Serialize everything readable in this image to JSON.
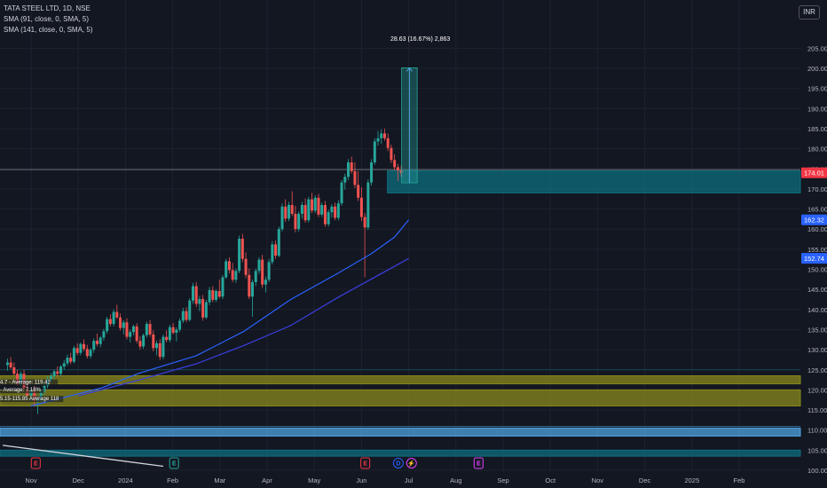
{
  "legend": {
    "symbol": "TATA STEEL LTD, 1D, NSE",
    "sma1": "SMA (91, close, 0, SMA, 5)",
    "sma2": "SMA (141, close, 0, SMA, 5)"
  },
  "currency": "INR",
  "measure_label": "28.63 (16.67%) 2,863",
  "zone_labels": [
    "4.7 - Average: 119.42",
    "- Average: 7.18%",
    "5.15-115.85 Average 118"
  ],
  "colors": {
    "background": "#131722",
    "up": "#26a69a",
    "down": "#ef5350",
    "sma1": "#2962ff",
    "sma2": "#3a3fe0",
    "zone_teal": "#0e6e7e",
    "zone_olive": "#8a8a1c",
    "zone_blue": "#4fa3e0"
  },
  "chart_data": {
    "type": "candlestick",
    "y_ticks": [
      100,
      105,
      110,
      115,
      120,
      125,
      130,
      135,
      140,
      145,
      150,
      155,
      160,
      165,
      170,
      175,
      180,
      185,
      190,
      195,
      200,
      205
    ],
    "ylim": [
      100,
      208
    ],
    "x_ticks": [
      "Nov",
      "Dec",
      "2024",
      "Feb",
      "Mar",
      "Apr",
      "May",
      "Jun",
      "Jul",
      "Aug",
      "Sep",
      "Oct",
      "Nov",
      "Dec",
      "2025",
      "Feb"
    ],
    "price_badges": [
      {
        "value": 174.01,
        "label": "174.01",
        "color": "#f23645"
      },
      {
        "value": 162.32,
        "label": "162.32",
        "color": "#2962ff"
      },
      {
        "value": 152.74,
        "label": "152.74",
        "color": "#2962ff"
      }
    ],
    "series": [
      {
        "name": "SMA (91, close, 0, SMA, 5)",
        "points": [
          [
            0,
            116
          ],
          [
            1.5,
            120.5
          ],
          [
            2.3,
            124.2
          ],
          [
            3.5,
            128.5
          ],
          [
            4.5,
            134.5
          ],
          [
            5.5,
            142.5
          ],
          [
            6.5,
            149
          ],
          [
            7.2,
            153.8
          ],
          [
            7.7,
            158
          ],
          [
            8.0,
            162.3
          ]
        ]
      },
      {
        "name": "SMA (141, close, 0, SMA, 5)",
        "points": [
          [
            1.0,
            118.5
          ],
          [
            2.3,
            122.5
          ],
          [
            3.5,
            126.5
          ],
          [
            4.5,
            131
          ],
          [
            5.5,
            136
          ],
          [
            6.5,
            143
          ],
          [
            7.2,
            147.5
          ],
          [
            8.0,
            152.7
          ]
        ]
      }
    ],
    "zones": [
      {
        "from": 169,
        "to": 174.5,
        "color": "#0e6e7e",
        "x_start": 7.55
      },
      {
        "from": 121.5,
        "to": 123.5,
        "color": "#8a8a1c"
      },
      {
        "from": 116,
        "to": 120,
        "color": "#8a8a1c"
      },
      {
        "from": 108.5,
        "to": 110.5,
        "color": "#4fa3e0"
      },
      {
        "from": 103.5,
        "to": 105,
        "color": "#0e6e7e"
      }
    ],
    "measure": {
      "x_start": 7.85,
      "x_end": 8.18,
      "from": 171.5,
      "to": 200.13,
      "change": 28.63,
      "percent": 16.67,
      "ticks": 2863
    },
    "events": [
      {
        "x": 0.1,
        "label": "E",
        "color": "#f23645"
      },
      {
        "x": 3.03,
        "label": "E",
        "color": "#26a69a"
      },
      {
        "x": 7.08,
        "label": "E",
        "color": "#f23645"
      },
      {
        "x": 7.78,
        "label": "D",
        "color": "#2962ff"
      },
      {
        "x": 8.06,
        "label": "⚡",
        "color": "#e040fb"
      },
      {
        "x": 9.48,
        "label": "E",
        "color": "#e040fb"
      }
    ],
    "trendline": {
      "from": [
        -0.6,
        106.2
      ],
      "to": [
        2.8,
        101
      ]
    },
    "candles": [
      [
        -0.5,
        126.2,
        127.8,
        124.8,
        126.8
      ],
      [
        -0.43,
        126.8,
        128.2,
        125.2,
        125.6
      ],
      [
        -0.36,
        125.6,
        126.8,
        123.6,
        124.0
      ],
      [
        -0.29,
        124.0,
        125.0,
        121.0,
        121.6
      ],
      [
        -0.22,
        121.6,
        124.6,
        121.0,
        124.0
      ],
      [
        -0.15,
        124.0,
        125.0,
        119.8,
        120.2
      ],
      [
        -0.08,
        120.2,
        122.0,
        117.8,
        118.6
      ],
      [
        0.0,
        118.6,
        120.4,
        117.2,
        119.8
      ],
      [
        0.07,
        119.8,
        121.0,
        116.0,
        117.2
      ],
      [
        0.14,
        117.2,
        118.4,
        114.0,
        117.8
      ],
      [
        0.21,
        117.8,
        120.2,
        117.0,
        119.6
      ],
      [
        0.28,
        119.6,
        121.6,
        118.8,
        121.0
      ],
      [
        0.35,
        121.0,
        123.4,
        120.4,
        122.6
      ],
      [
        0.42,
        122.6,
        124.2,
        121.8,
        123.4
      ],
      [
        0.49,
        123.4,
        125.0,
        122.6,
        124.6
      ],
      [
        0.56,
        124.6,
        125.8,
        123.2,
        124.0
      ],
      [
        0.63,
        124.0,
        126.2,
        123.4,
        125.8
      ],
      [
        0.7,
        125.8,
        127.4,
        125.0,
        126.6
      ],
      [
        0.77,
        126.6,
        128.8,
        126.0,
        128.0
      ],
      [
        0.84,
        128.0,
        129.2,
        126.4,
        127.0
      ],
      [
        0.91,
        127.0,
        131.0,
        126.6,
        130.4
      ],
      [
        0.98,
        130.4,
        131.6,
        128.6,
        129.2
      ],
      [
        1.05,
        129.2,
        131.8,
        128.6,
        131.4
      ],
      [
        1.12,
        131.4,
        132.6,
        129.6,
        130.2
      ],
      [
        1.19,
        130.2,
        131.2,
        127.8,
        128.4
      ],
      [
        1.26,
        128.4,
        130.4,
        127.8,
        130.0
      ],
      [
        1.33,
        130.0,
        132.8,
        129.2,
        132.2
      ],
      [
        1.4,
        132.2,
        134.0,
        130.8,
        131.4
      ],
      [
        1.47,
        131.4,
        133.4,
        130.6,
        133.0
      ],
      [
        1.54,
        133.0,
        135.2,
        132.2,
        134.6
      ],
      [
        1.61,
        134.6,
        138.2,
        134.0,
        137.6
      ],
      [
        1.68,
        137.6,
        138.8,
        135.8,
        136.4
      ],
      [
        1.75,
        136.4,
        140.0,
        135.8,
        139.4
      ],
      [
        1.82,
        139.4,
        141.2,
        137.6,
        138.0
      ],
      [
        1.89,
        138.0,
        139.0,
        134.8,
        135.4
      ],
      [
        1.96,
        135.4,
        137.4,
        133.8,
        136.8
      ],
      [
        2.03,
        136.8,
        137.8,
        132.6,
        133.2
      ],
      [
        2.1,
        133.2,
        135.0,
        131.8,
        134.4
      ],
      [
        2.17,
        134.4,
        136.2,
        133.6,
        135.8
      ],
      [
        2.24,
        135.8,
        136.6,
        131.6,
        132.2
      ],
      [
        2.31,
        132.2,
        133.4,
        130.0,
        130.8
      ],
      [
        2.38,
        130.8,
        134.0,
        130.2,
        133.6
      ],
      [
        2.45,
        133.6,
        137.0,
        133.0,
        136.4
      ],
      [
        2.52,
        136.4,
        137.4,
        133.2,
        133.8
      ],
      [
        2.59,
        133.8,
        134.8,
        129.6,
        130.4
      ],
      [
        2.66,
        130.4,
        132.2,
        128.6,
        131.6
      ],
      [
        2.73,
        131.6,
        132.6,
        127.4,
        128.2
      ],
      [
        2.8,
        128.2,
        133.8,
        127.6,
        133.2
      ],
      [
        2.87,
        133.2,
        134.8,
        131.8,
        132.4
      ],
      [
        2.94,
        132.4,
        136.2,
        131.8,
        135.6
      ],
      [
        3.01,
        135.6,
        136.6,
        133.8,
        134.2
      ],
      [
        3.08,
        134.2,
        135.6,
        132.0,
        135.0
      ],
      [
        3.15,
        135.0,
        137.8,
        134.4,
        137.2
      ],
      [
        3.22,
        137.2,
        140.4,
        136.6,
        139.6
      ],
      [
        3.29,
        139.6,
        140.6,
        136.8,
        137.4
      ],
      [
        3.36,
        137.4,
        142.8,
        137.0,
        142.2
      ],
      [
        3.43,
        142.2,
        146.6,
        141.4,
        145.8
      ],
      [
        3.5,
        145.8,
        146.8,
        140.6,
        141.4
      ],
      [
        3.57,
        141.4,
        143.4,
        139.6,
        142.6
      ],
      [
        3.64,
        142.6,
        143.6,
        137.2,
        138.0
      ],
      [
        3.71,
        138.0,
        142.4,
        137.6,
        141.8
      ],
      [
        3.78,
        141.8,
        145.6,
        141.0,
        144.8
      ],
      [
        3.85,
        144.8,
        145.8,
        141.8,
        142.4
      ],
      [
        3.92,
        142.4,
        145.0,
        141.8,
        144.6
      ],
      [
        3.99,
        144.6,
        147.4,
        142.8,
        143.2
      ],
      [
        4.06,
        143.2,
        148.6,
        142.6,
        148.0
      ],
      [
        4.13,
        148.0,
        152.6,
        147.6,
        152.0
      ],
      [
        4.2,
        152.0,
        153.0,
        149.0,
        149.8
      ],
      [
        4.27,
        149.8,
        151.6,
        146.8,
        147.4
      ],
      [
        4.34,
        147.4,
        150.2,
        146.6,
        149.6
      ],
      [
        4.41,
        149.6,
        158.4,
        149.0,
        157.6
      ],
      [
        4.48,
        157.6,
        158.8,
        151.8,
        152.6
      ],
      [
        4.55,
        152.6,
        154.2,
        147.8,
        148.6
      ],
      [
        4.62,
        148.6,
        150.2,
        142.6,
        143.2
      ],
      [
        4.69,
        143.2,
        147.4,
        138.2,
        146.8
      ],
      [
        4.76,
        146.8,
        150.2,
        145.8,
        149.6
      ],
      [
        4.83,
        149.6,
        153.0,
        148.8,
        152.4
      ],
      [
        4.9,
        152.4,
        153.6,
        145.4,
        146.2
      ],
      [
        4.97,
        146.2,
        148.2,
        144.2,
        147.4
      ],
      [
        5.04,
        147.4,
        152.6,
        146.8,
        151.8
      ],
      [
        5.11,
        151.8,
        157.0,
        151.2,
        156.2
      ],
      [
        5.18,
        156.2,
        157.2,
        152.6,
        153.4
      ],
      [
        5.25,
        153.4,
        160.6,
        153.0,
        160.0
      ],
      [
        5.32,
        160.0,
        166.4,
        159.4,
        165.6
      ],
      [
        5.39,
        165.6,
        167.4,
        161.8,
        162.6
      ],
      [
        5.46,
        162.6,
        166.8,
        162.0,
        166.0
      ],
      [
        5.53,
        166.0,
        169.4,
        163.2,
        163.8
      ],
      [
        5.6,
        163.8,
        165.8,
        159.2,
        160.0
      ],
      [
        5.67,
        160.0,
        164.4,
        159.4,
        163.8
      ],
      [
        5.74,
        163.8,
        166.8,
        162.6,
        166.0
      ],
      [
        5.81,
        166.0,
        167.6,
        161.6,
        162.2
      ],
      [
        5.88,
        162.2,
        168.0,
        161.6,
        167.4
      ],
      [
        5.95,
        167.4,
        169.0,
        164.0,
        164.6
      ],
      [
        6.02,
        164.6,
        168.4,
        164.0,
        167.8
      ],
      [
        6.09,
        167.8,
        168.8,
        163.0,
        163.6
      ],
      [
        6.16,
        163.6,
        166.6,
        163.0,
        166.0
      ],
      [
        6.23,
        166.0,
        167.0,
        160.6,
        161.2
      ],
      [
        6.3,
        161.2,
        164.8,
        160.6,
        164.2
      ],
      [
        6.37,
        164.2,
        166.2,
        162.8,
        165.6
      ],
      [
        6.44,
        165.6,
        166.6,
        162.2,
        162.8
      ],
      [
        6.51,
        162.8,
        167.2,
        162.2,
        166.4
      ],
      [
        6.58,
        166.4,
        172.2,
        165.8,
        171.6
      ],
      [
        6.65,
        171.6,
        173.8,
        169.8,
        173.0
      ],
      [
        6.72,
        173.0,
        177.4,
        172.2,
        176.6
      ],
      [
        6.79,
        176.6,
        178.0,
        173.8,
        174.4
      ],
      [
        6.86,
        174.4,
        176.6,
        170.2,
        171.0
      ],
      [
        6.93,
        171.0,
        174.4,
        167.0,
        167.8
      ],
      [
        7.0,
        167.8,
        170.4,
        162.0,
        163.0
      ],
      [
        7.07,
        163.0,
        164.0,
        148.0,
        160.4
      ],
      [
        7.14,
        160.4,
        172.4,
        159.8,
        171.6
      ],
      [
        7.21,
        171.6,
        177.4,
        170.8,
        176.6
      ],
      [
        7.28,
        176.6,
        182.6,
        176.0,
        181.8
      ],
      [
        7.35,
        181.8,
        184.4,
        180.8,
        182.6
      ],
      [
        7.42,
        182.6,
        184.8,
        181.2,
        183.8
      ],
      [
        7.49,
        183.8,
        185.0,
        182.0,
        182.6
      ],
      [
        7.56,
        182.6,
        183.8,
        179.4,
        180.2
      ],
      [
        7.63,
        180.2,
        181.0,
        176.4,
        177.2
      ],
      [
        7.7,
        177.2,
        178.6,
        174.6,
        175.4
      ],
      [
        7.77,
        175.4,
        176.2,
        172.0,
        174.6
      ],
      [
        7.84,
        174.6,
        175.8,
        173.0,
        174.01
      ]
    ]
  }
}
